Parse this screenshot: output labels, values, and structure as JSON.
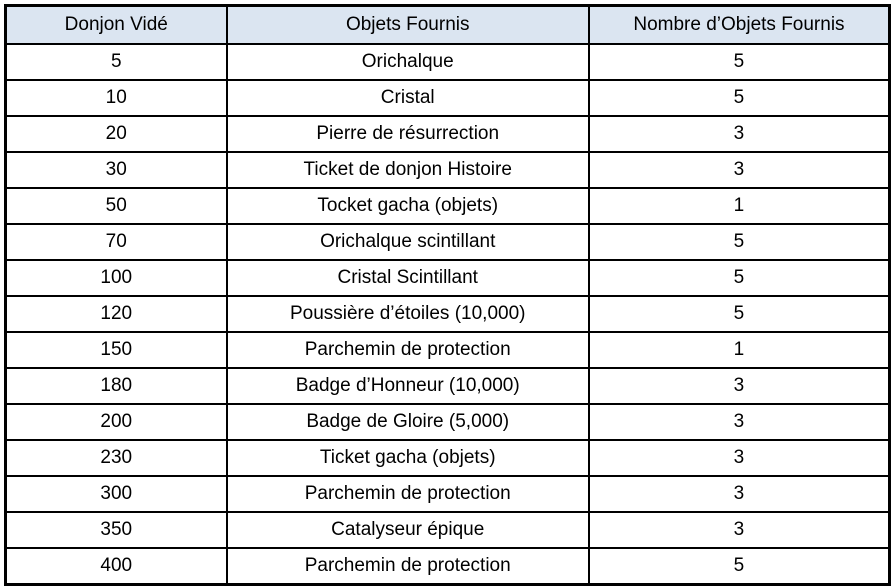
{
  "table": {
    "columns": [
      {
        "key": "donjon-vide",
        "label": "Donjon Vidé"
      },
      {
        "key": "objets-fournis",
        "label": "Objets Fournis"
      },
      {
        "key": "nombre-objets-fournis",
        "label": "Nombre d’Objets Fournis"
      }
    ],
    "rows": [
      [
        "5",
        "Orichalque",
        "5"
      ],
      [
        "10",
        "Cristal",
        "5"
      ],
      [
        "20",
        "Pierre de résurrection",
        "3"
      ],
      [
        "30",
        "Ticket de donjon Histoire",
        "3"
      ],
      [
        "50",
        "Tocket gacha (objets)",
        "1"
      ],
      [
        "70",
        "Orichalque scintillant",
        "5"
      ],
      [
        "100",
        "Cristal Scintillant",
        "5"
      ],
      [
        "120",
        "Poussière d’étoiles (10,000)",
        "5"
      ],
      [
        "150",
        "Parchemin de protection",
        "1"
      ],
      [
        "180",
        "Badge d’Honneur (10,000)",
        "3"
      ],
      [
        "200",
        "Badge de Gloire (5,000)",
        "3"
      ],
      [
        "230",
        "Ticket gacha (objets)",
        "3"
      ],
      [
        "300",
        "Parchemin de protection",
        "3"
      ],
      [
        "350",
        "Catalyseur épique",
        "3"
      ],
      [
        "400",
        "Parchemin de protection",
        "5"
      ]
    ],
    "colors": {
      "header_bg": "#dbe5f1",
      "border": "#000000",
      "text": "#000000",
      "row_bg": "#ffffff"
    }
  },
  "chart_data": {
    "type": "table",
    "title": "",
    "columns": [
      "Donjon Vidé",
      "Objets Fournis",
      "Nombre d’Objets Fournis"
    ],
    "rows": [
      [
        "5",
        "Orichalque",
        "5"
      ],
      [
        "10",
        "Cristal",
        "5"
      ],
      [
        "20",
        "Pierre de résurrection",
        "3"
      ],
      [
        "30",
        "Ticket de donjon Histoire",
        "3"
      ],
      [
        "50",
        "Tocket gacha (objets)",
        "1"
      ],
      [
        "70",
        "Orichalque scintillant",
        "5"
      ],
      [
        "100",
        "Cristal Scintillant",
        "5"
      ],
      [
        "120",
        "Poussière d’étoiles (10,000)",
        "5"
      ],
      [
        "150",
        "Parchemin de protection",
        "1"
      ],
      [
        "180",
        "Badge d’Honneur (10,000)",
        "3"
      ],
      [
        "200",
        "Badge de Gloire (5,000)",
        "3"
      ],
      [
        "230",
        "Ticket gacha (objets)",
        "3"
      ],
      [
        "300",
        "Parchemin de protection",
        "3"
      ],
      [
        "350",
        "Catalyseur épique",
        "3"
      ],
      [
        "400",
        "Parchemin de protection",
        "5"
      ]
    ]
  }
}
